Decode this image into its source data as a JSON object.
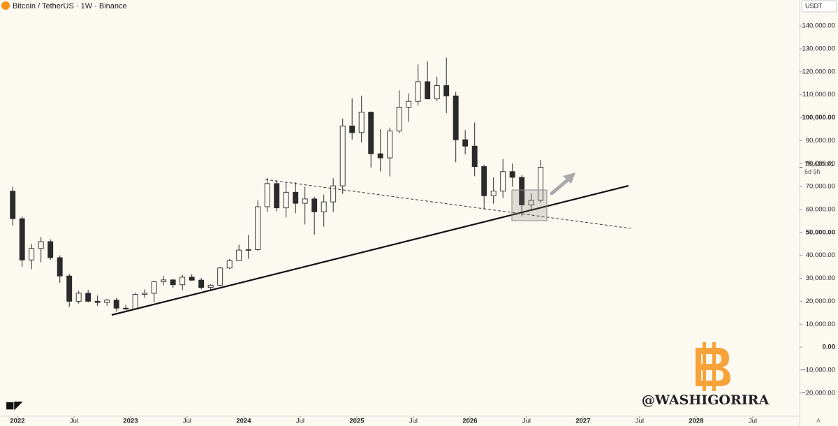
{
  "chart_data": {
    "type": "candlestick",
    "title": "Bitcoin / TetherUS · 1W · Binance",
    "currency": "USDT",
    "watermark": "@WASHIGORIRA",
    "x": [
      "2021-12",
      "2022-01",
      "2022-02",
      "2022-03",
      "2022-04",
      "2022-05",
      "2022-06",
      "2022-07",
      "2022-08",
      "2022-09",
      "2022-10",
      "2022-11",
      "2022-12",
      "2023-01",
      "2023-02",
      "2023-03",
      "2023-04",
      "2023-05",
      "2023-06",
      "2023-07",
      "2023-08",
      "2023-09",
      "2023-10",
      "2023-11",
      "2023-12",
      "2024-01",
      "2024-02",
      "2024-03",
      "2024-04",
      "2024-05",
      "2024-06",
      "2024-07",
      "2024-08",
      "2024-09",
      "2024-10",
      "2024-11",
      "2024-12",
      "2025-01",
      "2025-02",
      "2025-03",
      "2025-04",
      "2025-05",
      "2025-06",
      "2025-07",
      "2025-08",
      "2025-09",
      "2025-10",
      "2025-11",
      "2025-12",
      "2026-01",
      "2026-02",
      "2026-03",
      "2026-04",
      "2026-05",
      "2026-06",
      "2026-07",
      "2026-08"
    ],
    "open": [
      68000,
      56000,
      38000,
      43000,
      46000,
      39000,
      31000,
      20000,
      23500,
      20000,
      19500,
      20500,
      17000,
      16600,
      23000,
      23500,
      28500,
      29300,
      27200,
      30500,
      29200,
      26000,
      27000,
      34500,
      37700,
      42300,
      42500,
      61200,
      71300,
      60700,
      67500,
      62700,
      64600,
      59000,
      63300,
      70300,
      96400,
      93500,
      102400,
      84300,
      82500,
      94200,
      104600,
      107100,
      115700,
      108200,
      114000,
      109500,
      90400,
      87600,
      78700,
      66000,
      68000,
      76500,
      74000,
      62000,
      64000
    ],
    "high": [
      70000,
      57000,
      45000,
      48000,
      47000,
      40000,
      32000,
      24500,
      25000,
      22500,
      21000,
      21500,
      18500,
      23800,
      25200,
      29000,
      31000,
      29800,
      31400,
      31800,
      30200,
      27500,
      35000,
      38400,
      44700,
      48900,
      64000,
      73800,
      72700,
      71900,
      71900,
      70000,
      65600,
      66500,
      73600,
      99600,
      108400,
      109600,
      102700,
      95000,
      95700,
      111900,
      110500,
      123200,
      124500,
      117900,
      126200,
      111200,
      94600,
      97900,
      79500,
      74000,
      82000,
      80000,
      75000,
      67000,
      81600
    ],
    "low": [
      53000,
      35000,
      34000,
      37000,
      38000,
      28000,
      17500,
      19000,
      19500,
      18000,
      18000,
      15500,
      16200,
      16500,
      21500,
      19500,
      27000,
      25800,
      24800,
      28900,
      25200,
      24900,
      26500,
      34000,
      37600,
      38500,
      41900,
      59000,
      59200,
      56500,
      58400,
      53500,
      49000,
      52500,
      58900,
      66800,
      90500,
      89200,
      78300,
      76600,
      74400,
      93300,
      98200,
      105300,
      108000,
      107200,
      102000,
      80600,
      84000,
      74500,
      60000,
      62500,
      65000,
      70000,
      57000,
      59500,
      63000
    ],
    "close": [
      56000,
      38000,
      43000,
      46000,
      39000,
      31000,
      20000,
      23500,
      20000,
      19500,
      20500,
      17000,
      16600,
      23000,
      23500,
      28500,
      29300,
      27200,
      30500,
      29200,
      26000,
      27000,
      34500,
      37700,
      42300,
      42500,
      61200,
      71300,
      60700,
      67500,
      62700,
      64600,
      59000,
      63300,
      70300,
      96400,
      93500,
      102400,
      84300,
      82500,
      94200,
      104600,
      107100,
      115700,
      108200,
      114000,
      109500,
      90400,
      87600,
      78700,
      66000,
      68000,
      76500,
      74000,
      62000,
      64000,
      78420.01
    ],
    "last_price": {
      "value": 78420.01,
      "label": "78,420.01"
    },
    "countdown": "6d 9h",
    "ylim": [
      -30100,
      151300
    ],
    "yticks": [
      {
        "value": -20000,
        "label": "−20,000.00"
      },
      {
        "value": -10000,
        "label": "−10,000.00"
      },
      {
        "value": 0,
        "label": "0.00"
      },
      {
        "value": 10000,
        "label": "10,000.00"
      },
      {
        "value": 20000,
        "label": "20,000.00"
      },
      {
        "value": 30000,
        "label": "30,000.00"
      },
      {
        "value": 40000,
        "label": "40,000.00"
      },
      {
        "value": 50000,
        "label": "50,000.00"
      },
      {
        "value": 60000,
        "label": "60,000.00"
      },
      {
        "value": 70000,
        "label": "70,000.00"
      },
      {
        "value": 80000,
        "label": "80,000.00"
      },
      {
        "value": 90000,
        "label": "90,000.00"
      },
      {
        "value": 100000,
        "label": "100,000.00"
      },
      {
        "value": 110000,
        "label": "110,000.00"
      },
      {
        "value": 120000,
        "label": "120,000.00"
      },
      {
        "value": 130000,
        "label": "130,000.00"
      },
      {
        "value": 140000,
        "label": "140,000.00"
      }
    ],
    "xlim": [
      2021.846,
      2028.914
    ],
    "xticks": [
      2022,
      {
        "value": 2022.5,
        "label": "Jul"
      },
      2023,
      {
        "value": 2023.5,
        "label": "Jul"
      },
      2024,
      {
        "value": 2024.5,
        "label": "Jul"
      },
      2025,
      {
        "value": 2025.5,
        "label": "Jul"
      },
      2026,
      {
        "value": 2026.5,
        "label": "Jul"
      },
      2027,
      {
        "value": 2027.5,
        "label": "Jul"
      },
      2028,
      {
        "value": 2028.5,
        "label": "Jul"
      }
    ]
  }
}
